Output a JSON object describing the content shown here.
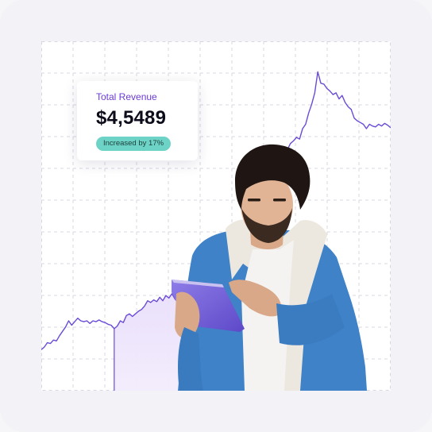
{
  "revenue_card": {
    "label": "Total Revenue",
    "value": "$4,5489",
    "badge": "Increased by 17%"
  },
  "photo": {
    "description_icon": "man-with-tablet-photo"
  },
  "colors": {
    "line": "#6a4bd6",
    "highlight_fill": "#e9ddfb",
    "grid": "#d7d7e2",
    "badge": "#6dd3c6",
    "accent_text": "#6c3ad6"
  },
  "chart_data": {
    "type": "line",
    "title": "",
    "xlabel": "",
    "ylabel": "",
    "grid": true,
    "highlight_range": [
      24,
      56
    ],
    "series": [
      {
        "values": [
          47,
          50,
          55,
          54,
          58,
          57,
          63,
          68,
          73,
          80,
          75,
          79,
          83,
          80,
          79,
          80,
          77,
          80,
          79,
          81,
          79,
          78,
          76,
          75,
          71,
          74,
          80,
          78,
          86,
          88,
          85,
          88,
          91,
          93,
          97,
          103,
          101,
          104,
          102,
          107,
          103,
          109,
          106,
          111,
          105,
          101,
          103,
          104,
          107,
          106,
          113,
          116,
          119,
          125,
          135,
          150,
          146,
          152,
          158,
          165,
          160,
          163,
          174,
          168,
          172,
          176,
          184,
          190,
          200,
          198,
          212,
          224,
          234,
          242,
          248,
          256,
          261,
          269,
          266,
          272,
          278,
          276,
          283,
          286,
          290,
          288,
          300,
          305,
          318,
          328,
          341,
          365,
          352,
          351,
          346,
          343,
          339,
          341,
          334,
          338,
          330,
          325,
          322,
          312,
          309,
          307,
          305,
          300,
          305,
          303,
          302,
          305,
          303,
          306,
          304,
          301
        ]
      }
    ]
  }
}
